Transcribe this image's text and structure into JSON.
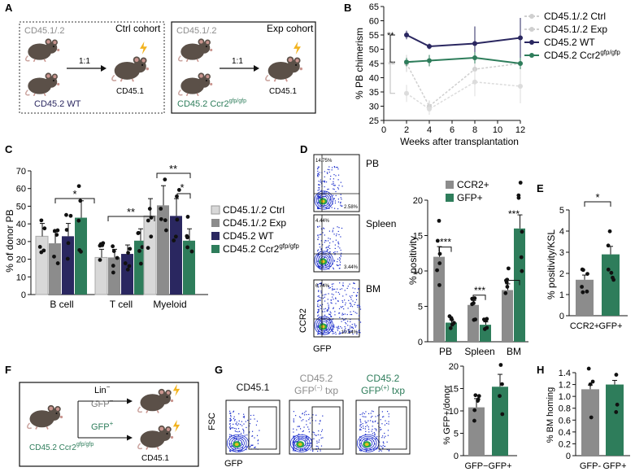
{
  "colors": {
    "ctrl": "#d8d8d8",
    "exp": "#8c8c8c",
    "wt": "#2a2760",
    "ccr2": "#2e7d5b",
    "ccr2_dark": "#1f6b48",
    "mouse": "#5b5048",
    "bolt": "#f2b31e"
  },
  "panelA": {
    "letter": "A",
    "ctrl_mixed": "CD45.1/.2",
    "ctrl_title": "Ctrl cohort",
    "ratio_ctrl": "1:1",
    "ctrl_recipient": "CD45.1",
    "ctrl_donor": "CD45.2 WT",
    "exp_mixed": "CD45.1/.2",
    "exp_title": "Exp cohort",
    "ratio_exp": "1:1",
    "exp_recipient": "CD45.1",
    "exp_donor_main": "CD45.2 Ccr2",
    "exp_donor_sup": "gfp/gfp"
  },
  "panelB": {
    "letter": "B",
    "legend": [
      {
        "main": "CD45.1/.2 Ctrl",
        "sup": ""
      },
      {
        "main": "CD45.1/.2 Exp",
        "sup": ""
      },
      {
        "main": "CD45.2 WT",
        "sup": ""
      },
      {
        "main": "CD45.2 Ccr2",
        "sup": "gfp/gfp"
      }
    ],
    "sig_top": "**",
    "sig_bottom": "**",
    "chart_data": {
      "type": "line",
      "xlabel": "Weeks after transplantation",
      "ylabel": "% PB chimerism",
      "x": [
        2,
        4,
        8,
        12
      ],
      "xlim": [
        0,
        12
      ],
      "ylim": [
        25,
        65
      ],
      "xticks": [
        "0",
        "2",
        "4",
        "6",
        "8",
        "10",
        "12"
      ],
      "yticks": [
        "25",
        "30",
        "35",
        "40",
        "45",
        "50",
        "55",
        "60",
        "65"
      ],
      "series": [
        {
          "name": "CD45.1/.2 Ctrl",
          "values": [
            45,
            30,
            43,
            45
          ]
        },
        {
          "name": "CD45.1/.2 Exp",
          "values": [
            34.5,
            29,
            38.5,
            37
          ]
        },
        {
          "name": "CD45.2 WT",
          "values": [
            55,
            51,
            52,
            54
          ]
        },
        {
          "name": "CD45.2 Ccr2gfp/gfp",
          "values": [
            45.5,
            46,
            47,
            45
          ]
        }
      ]
    }
  },
  "panelC": {
    "letter": "C",
    "sig": [
      "*",
      "**",
      "**",
      "*"
    ],
    "legend": [
      {
        "main": "CD45.1/.2 Ctrl",
        "sup": ""
      },
      {
        "main": "CD45.1/.2 Exp",
        "sup": ""
      },
      {
        "main": "CD45.2 WT",
        "sup": ""
      },
      {
        "main": "CD45.2 Ccr2",
        "sup": "gfp/gfp"
      }
    ],
    "chart_data": {
      "type": "bar",
      "ylabel": "% of donor PB",
      "categories": [
        "B cell",
        "T cell",
        "Myeloid"
      ],
      "ylim": [
        0,
        70
      ],
      "yticks": [
        "0",
        "10",
        "20",
        "30",
        "40",
        "50",
        "60",
        "70"
      ],
      "series": [
        {
          "name": "CD45.1/.2 Ctrl",
          "values": [
            33,
            21,
            44.5
          ]
        },
        {
          "name": "CD45.1/.2 Exp",
          "values": [
            29,
            21,
            50.5
          ]
        },
        {
          "name": "CD45.2 WT",
          "values": [
            33,
            23,
            44.5
          ]
        },
        {
          "name": "CD45.2 Ccr2gfp/gfp",
          "values": [
            43.5,
            30.5,
            30.5
          ]
        }
      ]
    }
  },
  "panelD": {
    "letter": "D",
    "flow": [
      {
        "tissue": "PB",
        "ul": "14.75%",
        "lr": "2.58%"
      },
      {
        "tissue": "Spleen",
        "ul": "4.44%",
        "lr": "3.44%"
      },
      {
        "tissue": "BM",
        "ul": "6.74%",
        "lr": "10.54%"
      }
    ],
    "axis_y": "CCR2",
    "axis_x": "GFP",
    "sig": [
      "***",
      "***",
      "***"
    ],
    "chart_data": {
      "type": "bar",
      "ylabel": "% positivity",
      "categories": [
        "PB",
        "Spleen",
        "BM"
      ],
      "ylim": [
        0,
        20
      ],
      "yticks": [
        "0",
        "5",
        "10",
        "15",
        "20"
      ],
      "series": [
        {
          "name": "CCR2+",
          "values": [
            12,
            5.2,
            7.3
          ]
        },
        {
          "name": "GFP+",
          "values": [
            2.7,
            2.4,
            16
          ]
        }
      ]
    }
  },
  "panelE": {
    "letter": "E",
    "sig": "*",
    "chart_data": {
      "type": "bar",
      "ylabel": "% positivity/KSL",
      "categories": [
        "CCR2+",
        "GFP+"
      ],
      "ylim": [
        0,
        5
      ],
      "yticks": [
        "0",
        "1",
        "2",
        "3",
        "4",
        "5"
      ],
      "values": [
        1.7,
        2.9
      ]
    }
  },
  "panelF": {
    "letter": "F",
    "lin": "Lin",
    "lin_sup": "−",
    "gfp_neg": "GFP",
    "gfp_neg_sup": "−",
    "gfp_pos": "GFP",
    "gfp_pos_sup": "+",
    "donor_main": "CD45.2 Ccr2",
    "donor_sup": "gfp/gfp",
    "recipient": "CD45.1"
  },
  "panelG": {
    "letter": "G",
    "plots": [
      {
        "line1": "CD45.1",
        "line2": "",
        "sup": "",
        "suffix": ""
      },
      {
        "line1": "CD45.2",
        "line2": "GFP",
        "sup": "(−)",
        "suffix": " txp"
      },
      {
        "line1": "CD45.2",
        "line2": "GFP",
        "sup": "(+)",
        "suffix": " txp"
      }
    ],
    "axis_y": "FSC",
    "axis_x": "GFP",
    "chart_data": {
      "type": "bar",
      "ylabel": "% GFP+/donor",
      "categories": [
        "GFP−",
        "GFP+"
      ],
      "ylim": [
        0,
        20
      ],
      "yticks": [
        "0",
        "5",
        "10",
        "15",
        "20"
      ],
      "values": [
        10.8,
        15.4
      ]
    }
  },
  "panelH": {
    "letter": "H",
    "chart_data": {
      "type": "bar",
      "ylabel": "% BM homing",
      "categories": [
        "GFP-",
        "GFP+"
      ],
      "ylim": [
        0,
        1.4
      ],
      "yticks": [
        "0",
        "0.2",
        "0.4",
        "0.6",
        "0.8",
        "1.0",
        "1.2",
        "1.4"
      ],
      "values": [
        1.12,
        1.2
      ]
    }
  }
}
